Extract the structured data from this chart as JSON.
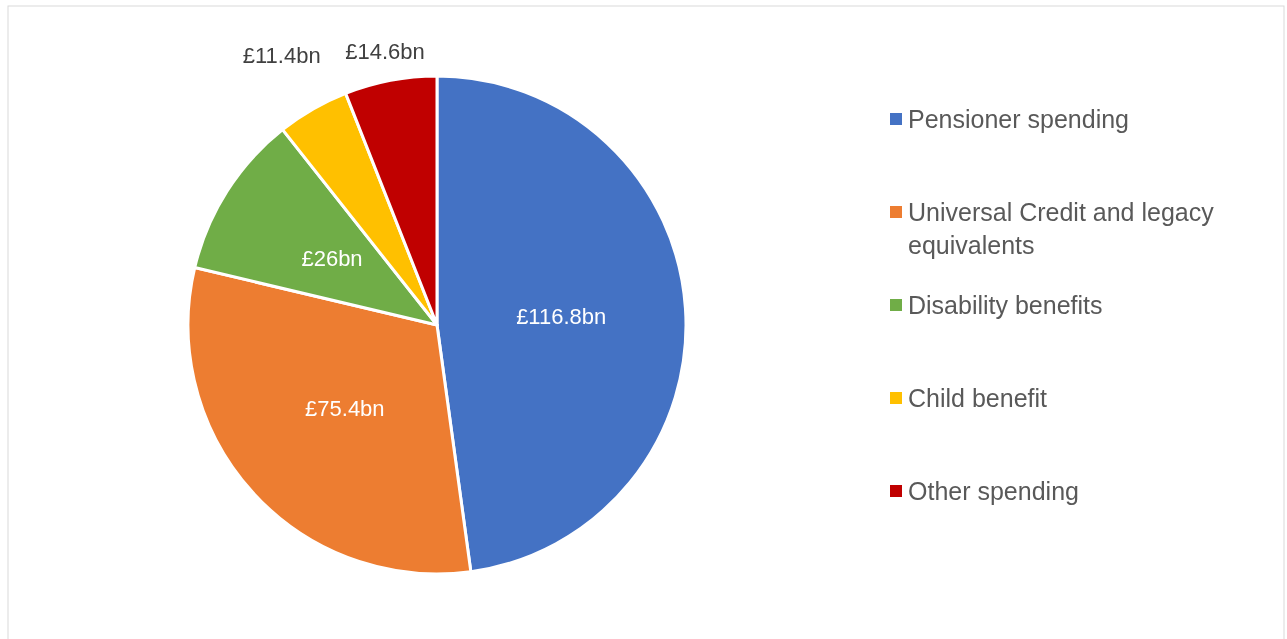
{
  "chart_data": {
    "type": "pie",
    "categories": [
      "Pensioner spending",
      "Universal Credit and legacy equivalents",
      "Disability benefits",
      "Child benefit",
      "Other spending"
    ],
    "values": [
      116.8,
      75.4,
      26,
      11.4,
      14.6
    ],
    "colors": [
      "#4472c4",
      "#ed7d31",
      "#70ad47",
      "#ffc000",
      "#c00000"
    ],
    "value_labels": [
      "£116.8bn",
      "£75.4bn",
      "£26bn",
      "£11.4bn",
      "£14.6bn"
    ],
    "legend": "right"
  }
}
